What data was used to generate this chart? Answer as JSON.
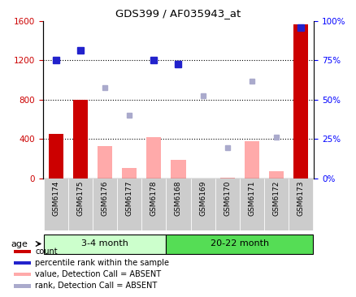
{
  "title": "GDS399 / AF035943_at",
  "categories": [
    "GSM6174",
    "GSM6175",
    "GSM6176",
    "GSM6177",
    "GSM6178",
    "GSM6168",
    "GSM6169",
    "GSM6170",
    "GSM6171",
    "GSM6172",
    "GSM6173"
  ],
  "count_values": [
    450,
    800,
    null,
    null,
    null,
    null,
    null,
    null,
    null,
    null,
    1560
  ],
  "count_absent_values": [
    null,
    null,
    330,
    100,
    420,
    190,
    null,
    5,
    380,
    70,
    null
  ],
  "rank_absent_values": [
    null,
    null,
    920,
    640,
    null,
    null,
    840,
    310,
    990,
    420,
    null
  ],
  "rank_present_values": [
    1200,
    1300,
    null,
    null,
    1200,
    1160,
    null,
    null,
    null,
    null,
    1530
  ],
  "group1_label": "3-4 month",
  "group1_indices": [
    0,
    1,
    2,
    3,
    4
  ],
  "group2_label": "20-22 month",
  "group2_indices": [
    5,
    6,
    7,
    8,
    9,
    10
  ],
  "age_label": "age",
  "ylim_left": [
    0,
    1600
  ],
  "ylim_right": [
    0,
    100
  ],
  "yticks_left": [
    0,
    400,
    800,
    1200,
    1600
  ],
  "yticks_right": [
    0,
    25,
    50,
    75,
    100
  ],
  "hlines": [
    400,
    800,
    1200
  ],
  "color_count": "#cc0000",
  "color_rank_present": "#2222cc",
  "color_absent_bar": "#ffaaaa",
  "color_absent_rank": "#aaaacc",
  "color_group1_bg": "#ccffcc",
  "color_group2_bg": "#55dd55",
  "color_xticklabel_bg": "#cccccc"
}
